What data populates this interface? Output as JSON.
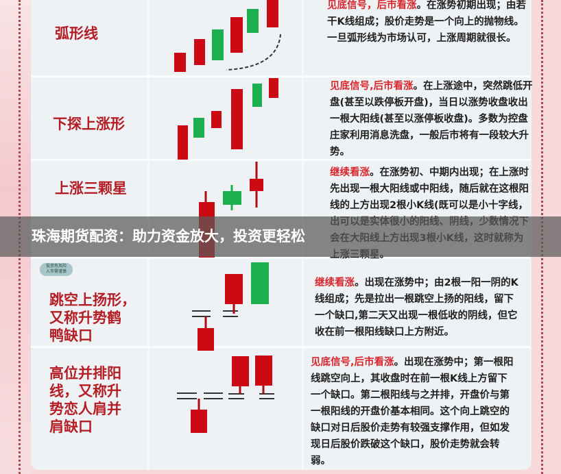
{
  "banner": {
    "text": "珠海期货配资：助力资金放大，投资更轻松"
  },
  "badge": {
    "line1": "投资有风险",
    "line2": "入市需谨慎"
  },
  "patterns": [
    {
      "title": [
        "弧形线"
      ],
      "signal": "见底信号，后市看涨",
      "text": "。在涨势初期出现；由若干K线组成；股价走势是一个向上的抛物线。一旦弧形线为市场认可，上涨周期就很长。"
    },
    {
      "title": [
        "下探上涨形"
      ],
      "signal": "见底信号,后市看涨",
      "text": "。在上涨途中，突然跳低开盘(甚至以跌停板开盘)，当日以涨势收盘收出一根大阳线(甚至以涨停板收盘)。多数为控盘庄家利用消息洗盘，一般后市将有一段较大升势。"
    },
    {
      "title": [
        "上涨三颗星"
      ],
      "signal": "继续看涨",
      "text": "。在涨势初、中期内出现；在上涨时先出现一根大阳线或中阳线，随后就在这根阳线的上方出现2根小K线(既可以是小十字线，出可以是实体很小的阳线、阴线，少数情况下会在大阳线上方出现3根小K线，这时就称为上涨三颗星。"
    },
    {
      "title": [
        "跳空上扬形，",
        "又称升势鹤",
        "鸭缺口"
      ],
      "signal": "继续看涨",
      "text": "。出现在涨势中；由2根一阳一阴的K线组成；先是拉出一根跳空上扬的阳线，留下一个缺口,第二天又出现一根低收的阴线，但它收在前一根阳线缺口上方附近。"
    },
    {
      "title": [
        "高位并排阳",
        "线，又称升",
        "势恋人肩并",
        "肩缺口"
      ],
      "signal": "见底信号,后市看涨",
      "text": "。出现在涨势中；第一根阳线跳空向上，其收盘时在前一根K线上方留下一个缺口。第二根阳线与之并排，开盘价与第一根阳线的开盘价基本相同。这个向上跳空的缺口对日后股价走势有较强支撑作用，但如发现日后股价跌破这个缺口，股价走势就会转弱。"
    }
  ],
  "colors": {
    "bullish": "#cc0a14",
    "bearish": "#1cb050",
    "title": "#b51d24",
    "signal": "#d9262c"
  }
}
